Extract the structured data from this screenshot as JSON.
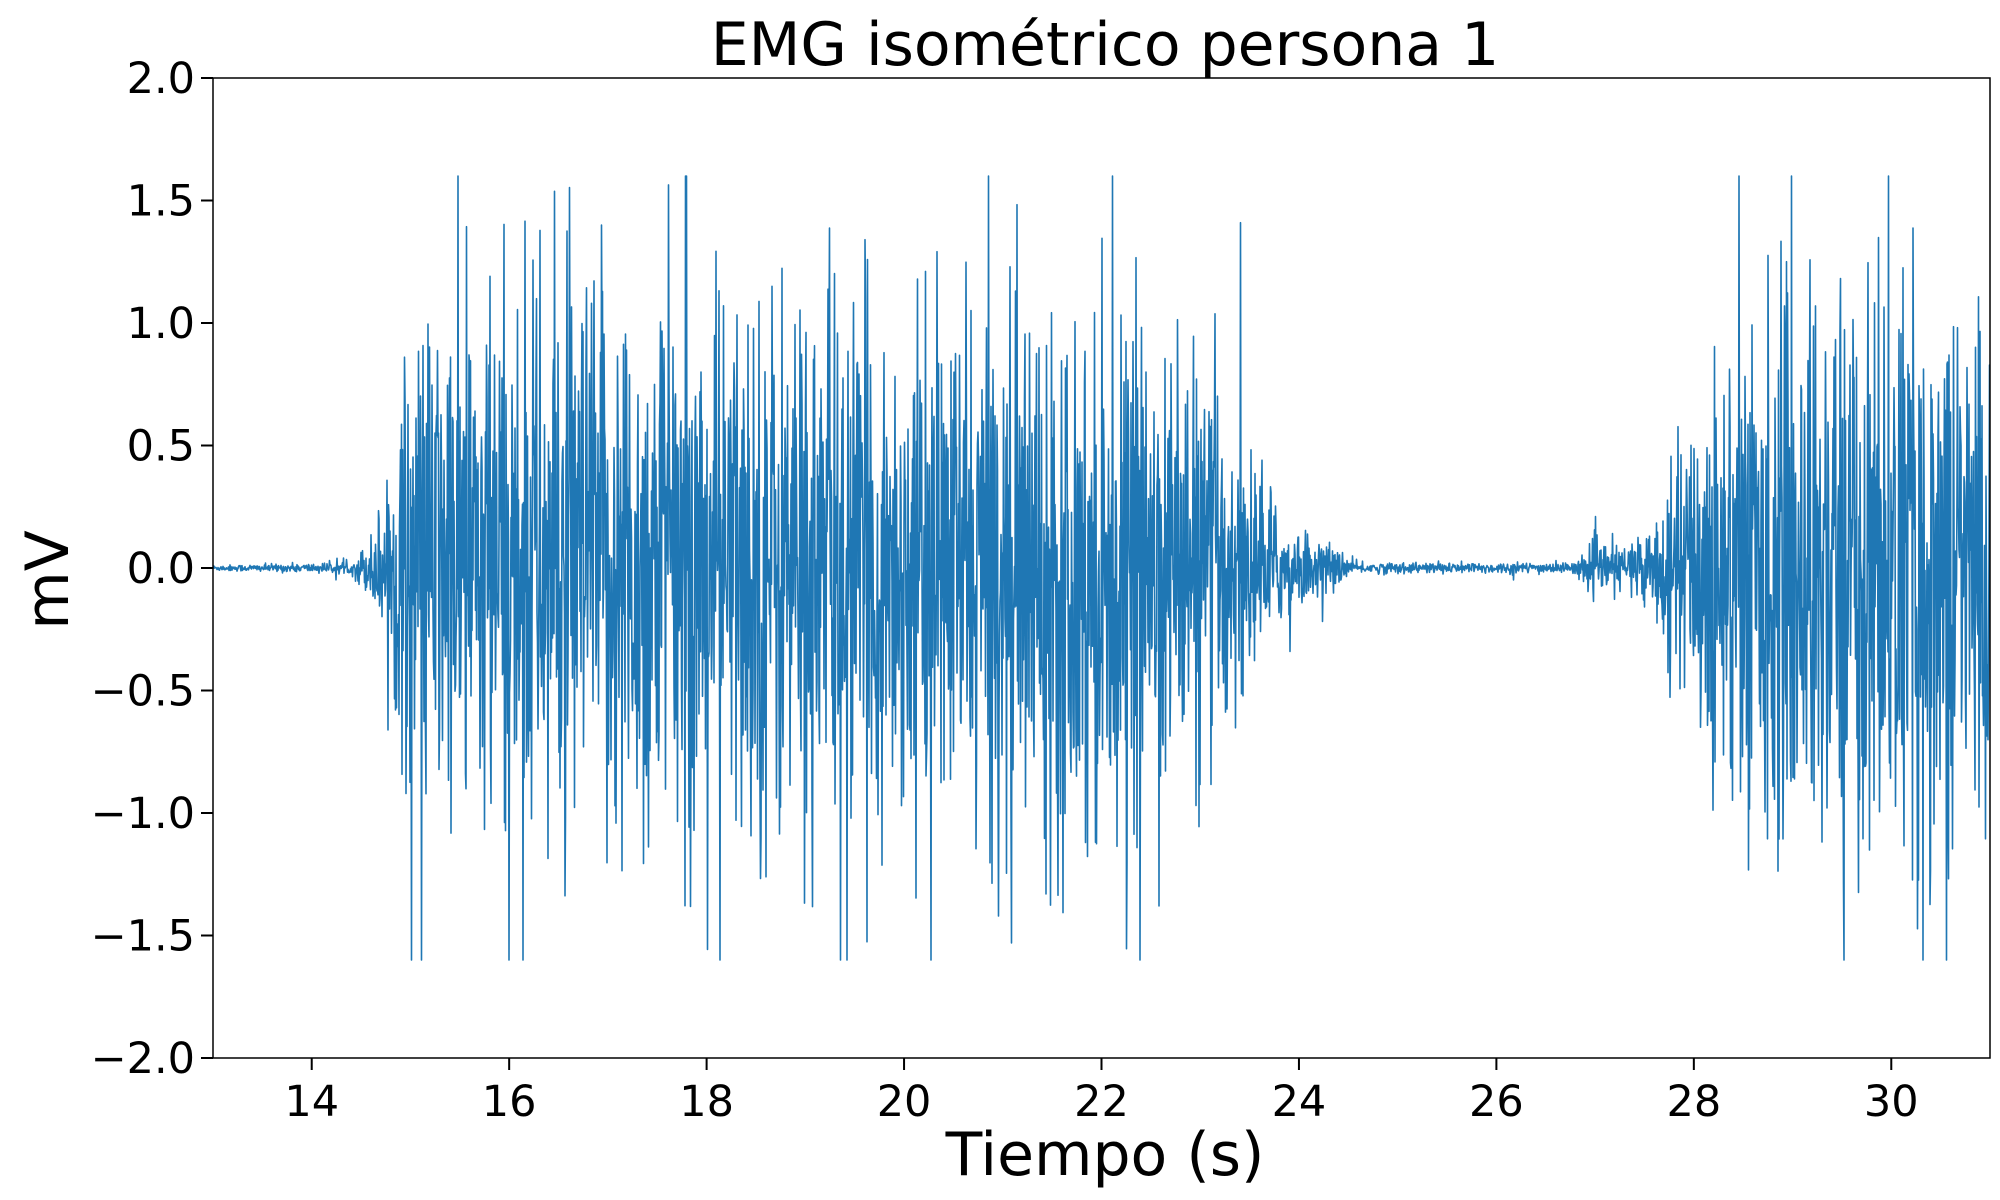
{
  "chart_data": {
    "type": "line",
    "title": "EMG isométrico persona 1",
    "xlabel": "Tiempo (s)",
    "ylabel": "mV",
    "xlim": [
      13,
      31
    ],
    "ylim": [
      -2.0,
      2.0
    ],
    "x_ticks": [
      14,
      16,
      18,
      20,
      22,
      24,
      26,
      28,
      30
    ],
    "y_ticks": [
      -2.0,
      -1.5,
      -1.0,
      -0.5,
      0.0,
      0.5,
      1.0,
      1.5,
      2.0
    ],
    "x_tick_labels": [
      "14",
      "16",
      "18",
      "20",
      "22",
      "24",
      "26",
      "28",
      "30"
    ],
    "y_tick_labels": [
      "−2.0",
      "−1.5",
      "−1.0",
      "−0.5",
      "0.0",
      "0.5",
      "1.0",
      "1.5",
      "2.0"
    ],
    "grid": false,
    "color": "#1f77b4",
    "signal_clip": [
      -1.6,
      1.6
    ],
    "envelope": [
      {
        "t": 13.0,
        "amp": 0.01
      },
      {
        "t": 14.4,
        "amp": 0.02
      },
      {
        "t": 14.6,
        "amp": 0.12
      },
      {
        "t": 14.75,
        "amp": 0.3
      },
      {
        "t": 15.0,
        "amp": 0.9
      },
      {
        "t": 16.0,
        "amp": 1.05
      },
      {
        "t": 17.0,
        "amp": 1.05
      },
      {
        "t": 18.0,
        "amp": 1.0
      },
      {
        "t": 19.0,
        "amp": 1.05
      },
      {
        "t": 20.0,
        "amp": 0.85
      },
      {
        "t": 21.0,
        "amp": 1.0
      },
      {
        "t": 22.0,
        "amp": 0.95
      },
      {
        "t": 23.0,
        "amp": 0.75
      },
      {
        "t": 23.5,
        "amp": 0.45
      },
      {
        "t": 23.8,
        "amp": 0.2
      },
      {
        "t": 24.3,
        "amp": 0.08
      },
      {
        "t": 24.6,
        "amp": 0.02
      },
      {
        "t": 26.8,
        "amp": 0.02
      },
      {
        "t": 27.0,
        "amp": 0.1
      },
      {
        "t": 27.3,
        "amp": 0.08
      },
      {
        "t": 27.6,
        "amp": 0.18
      },
      {
        "t": 27.9,
        "amp": 0.45
      },
      {
        "t": 28.2,
        "amp": 0.8
      },
      {
        "t": 29.0,
        "amp": 1.05
      },
      {
        "t": 30.0,
        "amp": 1.05
      },
      {
        "t": 31.0,
        "amp": 1.0
      }
    ]
  }
}
